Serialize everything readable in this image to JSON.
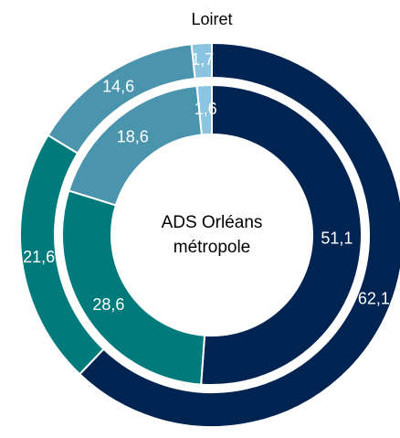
{
  "chart_data": {
    "type": "donut",
    "colors": [
      "#002452",
      "#007a7a",
      "#4a95ad",
      "#8ac4e0"
    ],
    "series": [
      {
        "name": "Loiret",
        "values": [
          62.1,
          21.6,
          14.6,
          1.7
        ],
        "value_labels": [
          "62,1",
          "21,6",
          "14,6",
          "1,7"
        ]
      },
      {
        "name": "ADS Orléans métropole",
        "values": [
          51.1,
          28.6,
          18.6,
          1.6
        ],
        "value_labels": [
          "51,1",
          "28,6",
          "18,6",
          "1,6"
        ]
      }
    ]
  }
}
